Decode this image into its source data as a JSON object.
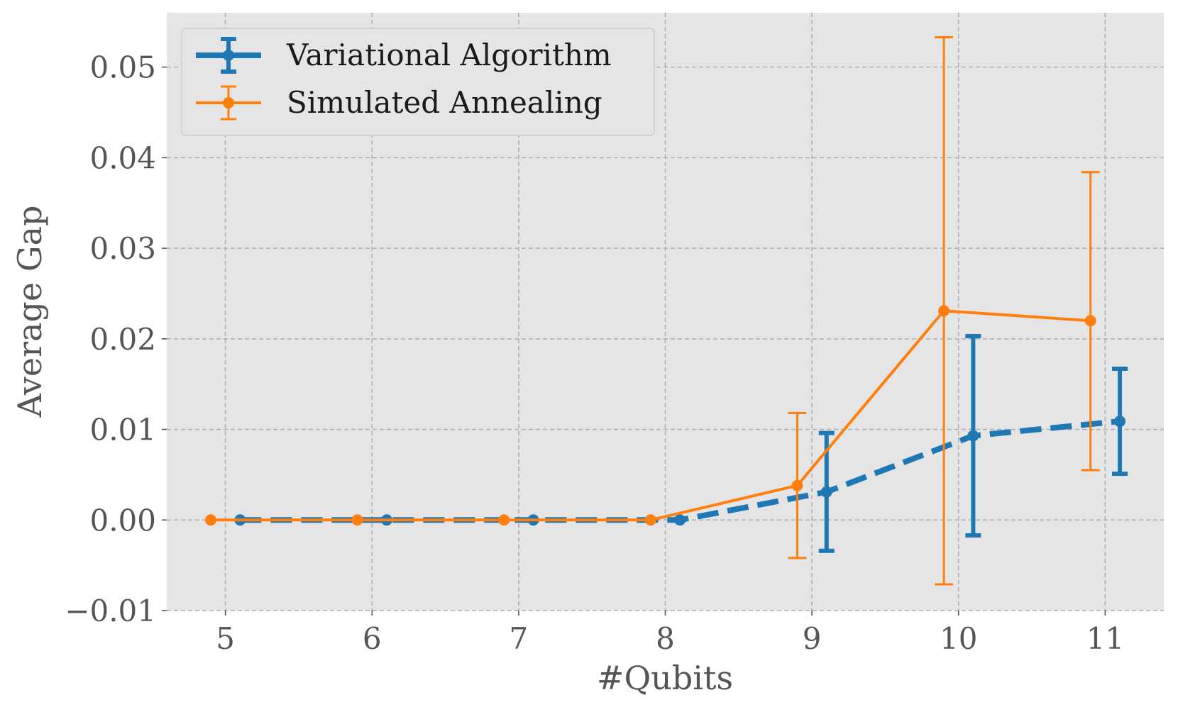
{
  "chart_data": {
    "type": "line",
    "xlabel": "#Qubits",
    "ylabel": "Average Gap",
    "xlim": [
      4.6,
      11.4
    ],
    "ylim": [
      -0.01,
      0.056
    ],
    "xticks": [
      5,
      6,
      7,
      8,
      9,
      10,
      11
    ],
    "yticks": [
      -0.01,
      0.0,
      0.01,
      0.02,
      0.03,
      0.04,
      0.05
    ],
    "ytick_labels": [
      "−0.01",
      "0.00",
      "0.01",
      "0.02",
      "0.03",
      "0.04",
      "0.05"
    ],
    "xtick_labels": [
      "5",
      "6",
      "7",
      "8",
      "9",
      "10",
      "11"
    ],
    "grid": true,
    "legend_position": "top-left",
    "series": [
      {
        "name": "Variational Algorithm",
        "color": "#1f77b4",
        "line_style": "dashed",
        "x": [
          5.1,
          6.1,
          7.1,
          8.1,
          9.1,
          10.1,
          11.1
        ],
        "y": [
          0.0,
          0.0,
          0.0,
          0.0,
          0.0031,
          0.0093,
          0.0109
        ],
        "err_low": [
          0.0,
          0.0,
          0.0,
          0.0,
          -0.0034,
          -0.0017,
          0.0051
        ],
        "err_high": [
          0.0,
          0.0,
          0.0,
          0.0,
          0.0096,
          0.0203,
          0.0167
        ]
      },
      {
        "name": "Simulated Annealing",
        "color": "#ff7f0e",
        "line_style": "solid",
        "x": [
          4.9,
          5.9,
          6.9,
          7.9,
          8.9,
          9.9,
          10.9
        ],
        "y": [
          0.0,
          0.0,
          0.0,
          0.0,
          0.0038,
          0.0231,
          0.022
        ],
        "err_low": [
          0.0,
          0.0,
          0.0,
          0.0,
          -0.0042,
          -0.0071,
          0.0055
        ],
        "err_high": [
          0.0,
          0.0,
          0.0,
          0.0,
          0.0118,
          0.0533,
          0.0384
        ]
      }
    ]
  }
}
